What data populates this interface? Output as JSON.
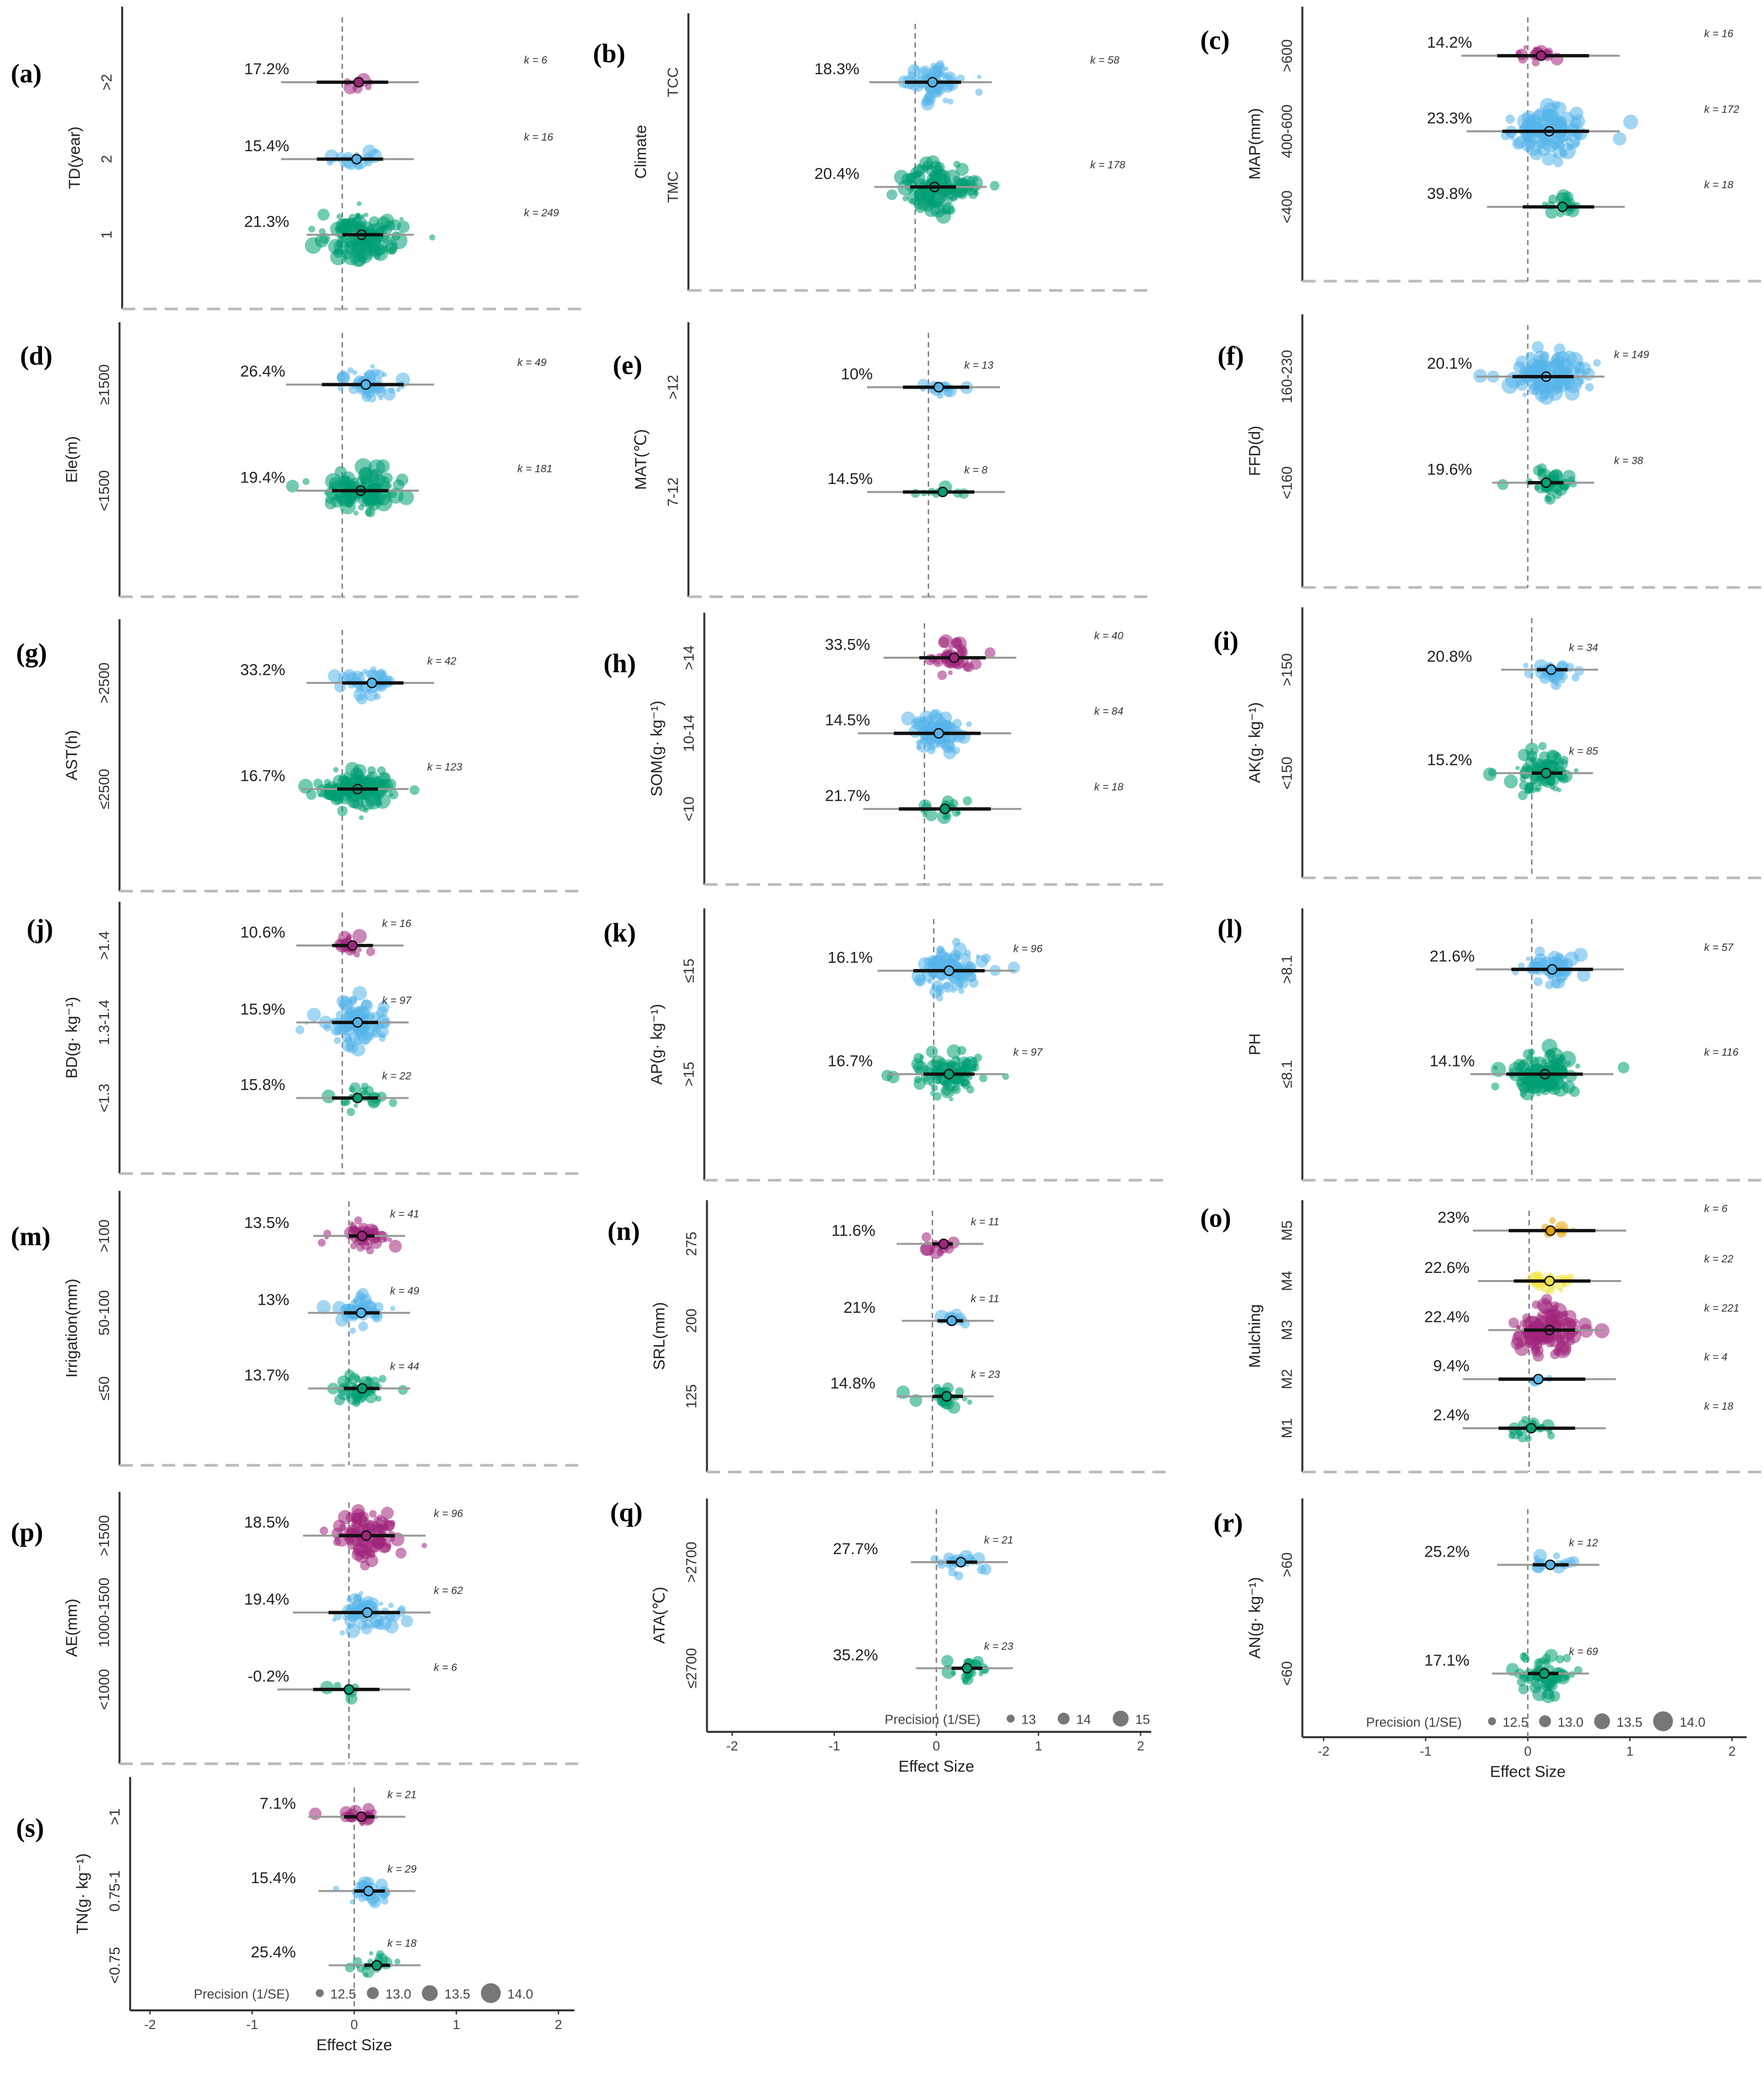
{
  "colors": {
    "magenta": "#a0257b",
    "blue": "#56b4e9",
    "green": "#009e73",
    "orange": "#e69f00",
    "yellow": "#f0e442"
  },
  "chart_data": [
    {
      "id": "a",
      "title": "(a)",
      "ylabel": "TD(year)",
      "groups": [
        {
          "label": ">2",
          "percent": "17.2%",
          "k": "k = 6",
          "estimate": 0.16,
          "ci": [
            -0.25,
            0.45
          ],
          "color": "magenta"
        },
        {
          "label": "2",
          "percent": "15.4%",
          "k": "k = 16",
          "estimate": 0.14,
          "ci": [
            -0.25,
            0.4
          ],
          "color": "blue"
        },
        {
          "label": "1",
          "percent": "21.3%",
          "k": "k = 249",
          "estimate": 0.19,
          "ci": [
            0.0,
            0.4
          ],
          "color": "green"
        }
      ]
    },
    {
      "id": "b",
      "title": "(b)",
      "ylabel": "Climate",
      "groups": [
        {
          "label": "TCC",
          "percent": "18.3%",
          "k": "k = 58",
          "estimate": 0.17,
          "ci": [
            -0.1,
            0.45
          ],
          "color": "blue"
        },
        {
          "label": "TMC",
          "percent": "20.4%",
          "k": "k = 178",
          "estimate": 0.19,
          "ci": [
            -0.05,
            0.4
          ],
          "color": "green"
        }
      ]
    },
    {
      "id": "c",
      "title": "(c)",
      "ylabel": "MAP(mm)",
      "groups": [
        {
          "label": ">600",
          "percent": "14.2%",
          "k": "k = 16",
          "estimate": 0.13,
          "ci": [
            -0.3,
            0.6
          ],
          "color": "magenta"
        },
        {
          "label": "400-600",
          "percent": "23.3%",
          "k": "k = 172",
          "estimate": 0.21,
          "ci": [
            -0.25,
            0.6
          ],
          "color": "blue"
        },
        {
          "label": "<400",
          "percent": "39.8%",
          "k": "k = 18",
          "estimate": 0.34,
          "ci": [
            -0.05,
            0.65
          ],
          "color": "green"
        }
      ]
    },
    {
      "id": "d",
      "title": "(d)",
      "ylabel": "Ele(m)",
      "groups": [
        {
          "label": "≥1500",
          "percent": "26.4%",
          "k": "k = 49",
          "estimate": 0.23,
          "ci": [
            -0.2,
            0.6
          ],
          "color": "blue"
        },
        {
          "label": "<1500",
          "percent": "19.4%",
          "k": "k = 181",
          "estimate": 0.18,
          "ci": [
            -0.1,
            0.45
          ],
          "color": "green"
        }
      ]
    },
    {
      "id": "e",
      "title": "(e)",
      "ylabel": "MAT(℃)",
      "groups": [
        {
          "label": ">12",
          "percent": "10%",
          "k": "k = 13",
          "estimate": 0.1,
          "ci": [
            -0.25,
            0.4
          ],
          "color": "blue"
        },
        {
          "label": "7-12",
          "percent": "14.5%",
          "k": "k = 8",
          "estimate": 0.14,
          "ci": [
            -0.25,
            0.45
          ],
          "color": "green"
        }
      ]
    },
    {
      "id": "f",
      "title": "(f)",
      "ylabel": "FFD(d)",
      "groups": [
        {
          "label": "160-230",
          "percent": "20.1%",
          "k": "k = 149",
          "estimate": 0.18,
          "ci": [
            -0.15,
            0.45
          ],
          "color": "blue"
        },
        {
          "label": "<160",
          "percent": "19.6%",
          "k": "k = 38",
          "estimate": 0.18,
          "ci": [
            0.0,
            0.35
          ],
          "color": "green"
        }
      ]
    },
    {
      "id": "g",
      "title": "(g)",
      "ylabel": "AST(h)",
      "groups": [
        {
          "label": ">2500",
          "percent": "33.2%",
          "k": "k = 42",
          "estimate": 0.29,
          "ci": [
            0.0,
            0.6
          ],
          "color": "blue"
        },
        {
          "label": "≤2500",
          "percent": "16.7%",
          "k": "k = 123",
          "estimate": 0.15,
          "ci": [
            -0.05,
            0.35
          ],
          "color": "green"
        }
      ]
    },
    {
      "id": "h",
      "title": "(h)",
      "ylabel": "SOM(g· kg⁻¹)",
      "groups": [
        {
          "label": ">14",
          "percent": "33.5%",
          "k": "k = 40",
          "estimate": 0.29,
          "ci": [
            -0.05,
            0.6
          ],
          "color": "magenta"
        },
        {
          "label": "10-14",
          "percent": "14.5%",
          "k": "k = 84",
          "estimate": 0.14,
          "ci": [
            -0.3,
            0.55
          ],
          "color": "blue"
        },
        {
          "label": "<10",
          "percent": "21.7%",
          "k": "k = 18",
          "estimate": 0.2,
          "ci": [
            -0.25,
            0.65
          ],
          "color": "green"
        }
      ]
    },
    {
      "id": "i",
      "title": "(i)",
      "ylabel": "AK(g· kg⁻¹)",
      "groups": [
        {
          "label": ">150",
          "percent": "20.8%",
          "k": "k = 34",
          "estimate": 0.19,
          "ci": [
            0.05,
            0.35
          ],
          "color": "blue"
        },
        {
          "label": "<150",
          "percent": "15.2%",
          "k": "k = 85",
          "estimate": 0.14,
          "ci": [
            0.0,
            0.3
          ],
          "color": "green"
        }
      ]
    },
    {
      "id": "j",
      "title": "(j)",
      "ylabel": "BD(g· kg⁻¹)",
      "groups": [
        {
          "label": ">1.4",
          "percent": "10.6%",
          "k": "k = 16",
          "estimate": 0.1,
          "ci": [
            -0.1,
            0.3
          ],
          "color": "magenta"
        },
        {
          "label": "1.3-1.4",
          "percent": "15.9%",
          "k": "k = 97",
          "estimate": 0.15,
          "ci": [
            -0.1,
            0.35
          ],
          "color": "blue"
        },
        {
          "label": "<1.3",
          "percent": "15.8%",
          "k": "k = 22",
          "estimate": 0.15,
          "ci": [
            -0.1,
            0.35
          ],
          "color": "green"
        }
      ]
    },
    {
      "id": "k",
      "title": "(k)",
      "ylabel": "AP(g· kg⁻¹)",
      "groups": [
        {
          "label": "≤15",
          "percent": "16.1%",
          "k": "k = 96",
          "estimate": 0.15,
          "ci": [
            -0.2,
            0.5
          ],
          "color": "blue"
        },
        {
          "label": ">15",
          "percent": "16.7%",
          "k": "k = 97",
          "estimate": 0.15,
          "ci": [
            -0.1,
            0.4
          ],
          "color": "green"
        }
      ]
    },
    {
      "id": "l",
      "title": "(l)",
      "ylabel": "PH",
      "groups": [
        {
          "label": ">8.1",
          "percent": "21.6%",
          "k": "k = 57",
          "estimate": 0.2,
          "ci": [
            -0.2,
            0.6
          ],
          "color": "blue"
        },
        {
          "label": "≤8.1",
          "percent": "14.1%",
          "k": "k = 116",
          "estimate": 0.13,
          "ci": [
            -0.25,
            0.5
          ],
          "color": "green"
        }
      ]
    },
    {
      "id": "m",
      "title": "(m)",
      "ylabel": "Irrigation(mm)",
      "groups": [
        {
          "label": ">100",
          "percent": "13.5%",
          "k": "k = 41",
          "estimate": 0.13,
          "ci": [
            0.0,
            0.25
          ],
          "color": "magenta"
        },
        {
          "label": "50-100",
          "percent": "13%",
          "k": "k = 49",
          "estimate": 0.12,
          "ci": [
            -0.05,
            0.3
          ],
          "color": "blue"
        },
        {
          "label": "≤50",
          "percent": "13.7%",
          "k": "k = 44",
          "estimate": 0.13,
          "ci": [
            -0.05,
            0.3
          ],
          "color": "green"
        }
      ]
    },
    {
      "id": "n",
      "title": "(n)",
      "ylabel": "SRL(mm)",
      "groups": [
        {
          "label": "275",
          "percent": "11.6%",
          "k": "k = 11",
          "estimate": 0.11,
          "ci": [
            0.0,
            0.2
          ],
          "color": "magenta"
        },
        {
          "label": "200",
          "percent": "21%",
          "k": "k = 11",
          "estimate": 0.19,
          "ci": [
            0.05,
            0.3
          ],
          "color": "blue"
        },
        {
          "label": "125",
          "percent": "14.8%",
          "k": "k = 23",
          "estimate": 0.14,
          "ci": [
            0.0,
            0.3
          ],
          "color": "green"
        }
      ]
    },
    {
      "id": "o",
      "title": "(o)",
      "ylabel": "Mulching",
      "groups": [
        {
          "label": "M5",
          "percent": "23%",
          "k": "k = 6",
          "estimate": 0.21,
          "ci": [
            -0.2,
            0.65
          ],
          "color": "orange"
        },
        {
          "label": "M4",
          "percent": "22.6%",
          "k": "k = 22",
          "estimate": 0.2,
          "ci": [
            -0.15,
            0.6
          ],
          "color": "yellow"
        },
        {
          "label": "M3",
          "percent": "22.4%",
          "k": "k = 221",
          "estimate": 0.2,
          "ci": [
            -0.05,
            0.45
          ],
          "color": "magenta"
        },
        {
          "label": "M2",
          "percent": "9.4%",
          "k": "k = 4",
          "estimate": 0.09,
          "ci": [
            -0.3,
            0.55
          ],
          "color": "blue"
        },
        {
          "label": "M1",
          "percent": "2.4%",
          "k": "k = 18",
          "estimate": 0.02,
          "ci": [
            -0.3,
            0.45
          ],
          "color": "green"
        }
      ]
    },
    {
      "id": "p",
      "title": "(p)",
      "ylabel": "AE(mm)",
      "groups": [
        {
          "label": ">1500",
          "percent": "18.5%",
          "k": "k = 96",
          "estimate": 0.17,
          "ci": [
            -0.1,
            0.45
          ],
          "color": "magenta"
        },
        {
          "label": "1000-1500",
          "percent": "19.4%",
          "k": "k = 62",
          "estimate": 0.18,
          "ci": [
            -0.2,
            0.5
          ],
          "color": "blue"
        },
        {
          "label": "<1000",
          "percent": "-0.2%",
          "k": "k = 6",
          "estimate": 0.0,
          "ci": [
            -0.35,
            0.3
          ],
          "color": "green"
        }
      ]
    },
    {
      "id": "q",
      "title": "(q)",
      "ylabel": "ATA(℃)",
      "xlabel": "Effect Size",
      "xticks": [
        "-2",
        "-1",
        "0",
        "1",
        "2"
      ],
      "legend": {
        "title": "Precision (1/SE)",
        "items": [
          "13",
          "14",
          "15"
        ]
      },
      "groups": [
        {
          "label": ">2700",
          "percent": "27.7%",
          "k": "k = 21",
          "estimate": 0.24,
          "ci": [
            0.1,
            0.4
          ],
          "color": "blue"
        },
        {
          "label": "≤2700",
          "percent": "35.2%",
          "k": "k = 23",
          "estimate": 0.3,
          "ci": [
            0.15,
            0.45
          ],
          "color": "green"
        }
      ]
    },
    {
      "id": "r",
      "title": "(r)",
      "ylabel": "AN(g· kg⁻¹)",
      "xlabel": "Effect Size",
      "xticks": [
        "-2",
        "-1",
        "0",
        "1",
        "2"
      ],
      "legend": {
        "title": "Precision (1/SE)",
        "items": [
          "12.5",
          "13.0",
          "13.5",
          "14.0"
        ]
      },
      "groups": [
        {
          "label": ">60",
          "percent": "25.2%",
          "k": "k = 12",
          "estimate": 0.22,
          "ci": [
            0.05,
            0.4
          ],
          "color": "blue"
        },
        {
          "label": "<60",
          "percent": "17.1%",
          "k": "k = 69",
          "estimate": 0.16,
          "ci": [
            0.0,
            0.3
          ],
          "color": "green"
        }
      ]
    },
    {
      "id": "s",
      "title": "(s)",
      "ylabel": "TN(g· kg⁻¹)",
      "xlabel": "Effect Size",
      "xticks": [
        "-2",
        "-1",
        "0",
        "1",
        "2"
      ],
      "legend": {
        "title": "Precision (1/SE)",
        "items": [
          "12.5",
          "13.0",
          "13.5",
          "14.0"
        ]
      },
      "groups": [
        {
          "label": ">1",
          "percent": "7.1%",
          "k": "k = 21",
          "estimate": 0.07,
          "ci": [
            -0.1,
            0.2
          ],
          "color": "magenta"
        },
        {
          "label": "0.75-1",
          "percent": "15.4%",
          "k": "k = 29",
          "estimate": 0.14,
          "ci": [
            0.0,
            0.3
          ],
          "color": "blue"
        },
        {
          "label": "<0.75",
          "percent": "25.4%",
          "k": "k = 18",
          "estimate": 0.22,
          "ci": [
            0.1,
            0.35
          ],
          "color": "green"
        }
      ]
    }
  ]
}
